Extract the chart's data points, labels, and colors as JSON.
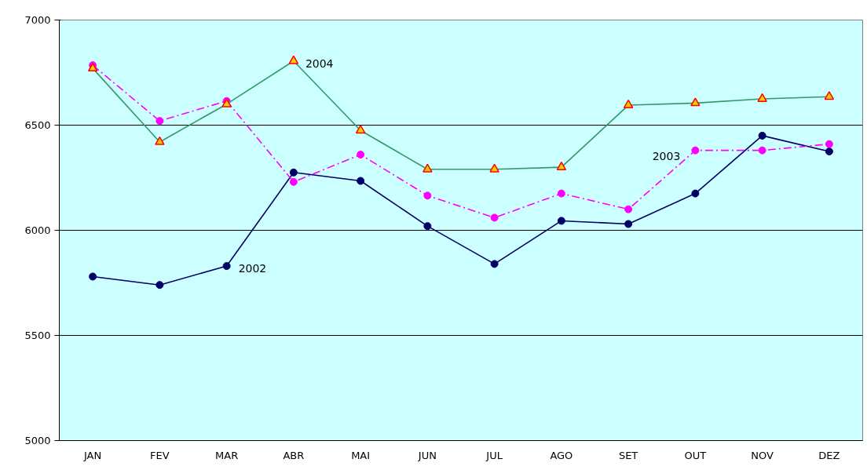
{
  "chart_data": {
    "type": "line",
    "categories": [
      "JAN",
      "FEV",
      "MAR",
      "ABR",
      "MAI",
      "JUN",
      "JUL",
      "AGO",
      "SET",
      "OUT",
      "NOV",
      "DEZ"
    ],
    "series": [
      {
        "name": "2002",
        "color": "#000066",
        "marker": "circle",
        "line_style": "solid",
        "values": [
          5780,
          5740,
          5830,
          6275,
          6235,
          6020,
          5840,
          6045,
          6030,
          6175,
          6450,
          6375
        ]
      },
      {
        "name": "2003",
        "color": "#ff00ff",
        "marker": "circle",
        "line_style": "dashdot",
        "values": [
          6785,
          6520,
          6615,
          6230,
          6360,
          6165,
          6060,
          6175,
          6100,
          6380,
          6380,
          6410
        ]
      },
      {
        "name": "2004",
        "color": "#339966",
        "marker": "triangle",
        "line_style": "solid",
        "values": [
          6770,
          6420,
          6600,
          6805,
          6475,
          6290,
          6290,
          6300,
          6595,
          6605,
          6625,
          6635
        ]
      }
    ],
    "ylim": [
      5000,
      7000
    ],
    "yticks": [
      5000,
      5500,
      6000,
      6500,
      7000
    ],
    "grid": "y"
  }
}
